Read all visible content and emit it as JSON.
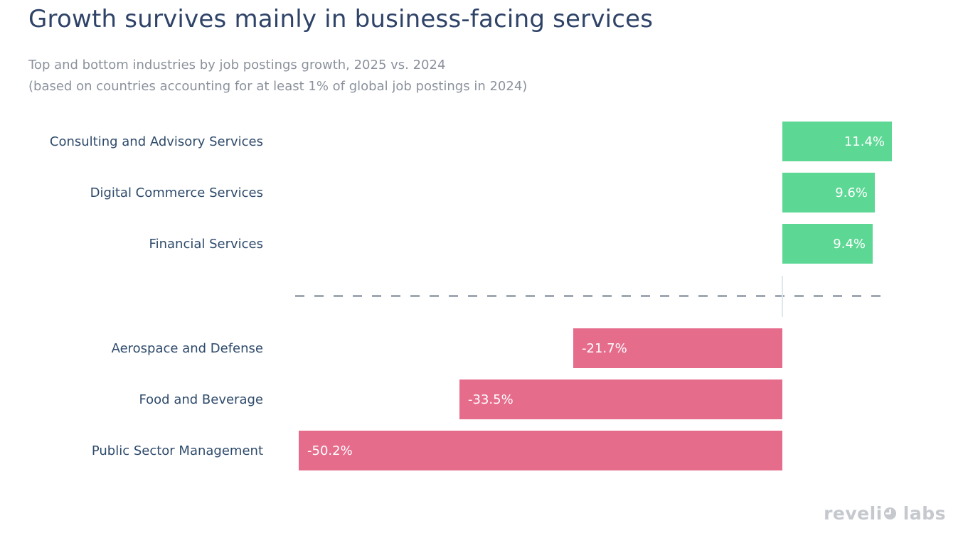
{
  "page": {
    "background": "#ffffff"
  },
  "header": {
    "title": "Growth survives mainly in business-facing services",
    "subtitle_lines": [
      "Top and bottom industries by job postings growth, 2025 vs. 2024",
      "(based on countries accounting for at least 1% of global job postings in 2024)"
    ]
  },
  "chart_data": {
    "type": "bar",
    "orientation": "horizontal",
    "title": "Growth survives mainly in business-facing services",
    "subtitle": "Top and bottom industries by job postings growth, 2025 vs. 2024 (based on countries accounting for at least 1% of global job postings in 2024)",
    "categories": [
      "Consulting and Advisory Services",
      "Digital Commerce Services",
      "Financial Services",
      "Aerospace and Defense",
      "Food and Beverage",
      "Public Sector Management"
    ],
    "values": [
      11.4,
      9.6,
      9.4,
      -21.7,
      -33.5,
      -50.2
    ],
    "value_labels": [
      "11.4%",
      "9.6%",
      "9.4%",
      "-21.7%",
      "-33.5%",
      "-50.2%"
    ],
    "unit": "percent",
    "xlabel": "",
    "ylabel": "",
    "xlim": [
      -55,
      18
    ],
    "grid": false,
    "legend": false,
    "separator_note": "dashed horizontal line separating top (positive) group from bottom (negative) group",
    "colors": {
      "positive": "#5dd894",
      "negative": "#e66c8c",
      "value_label": "#ffffff",
      "category_label": "#2e4a6b",
      "separator_dash": "#9fa8b3",
      "zero_baseline": "#dfe9ed",
      "title": "#2f4368",
      "subtitle": "#8b919c"
    }
  },
  "footer": {
    "brand_part1": "reveli",
    "brand_part2": "labs",
    "brand_full": "revelio labs",
    "brand_color": "#c5c8cd"
  }
}
